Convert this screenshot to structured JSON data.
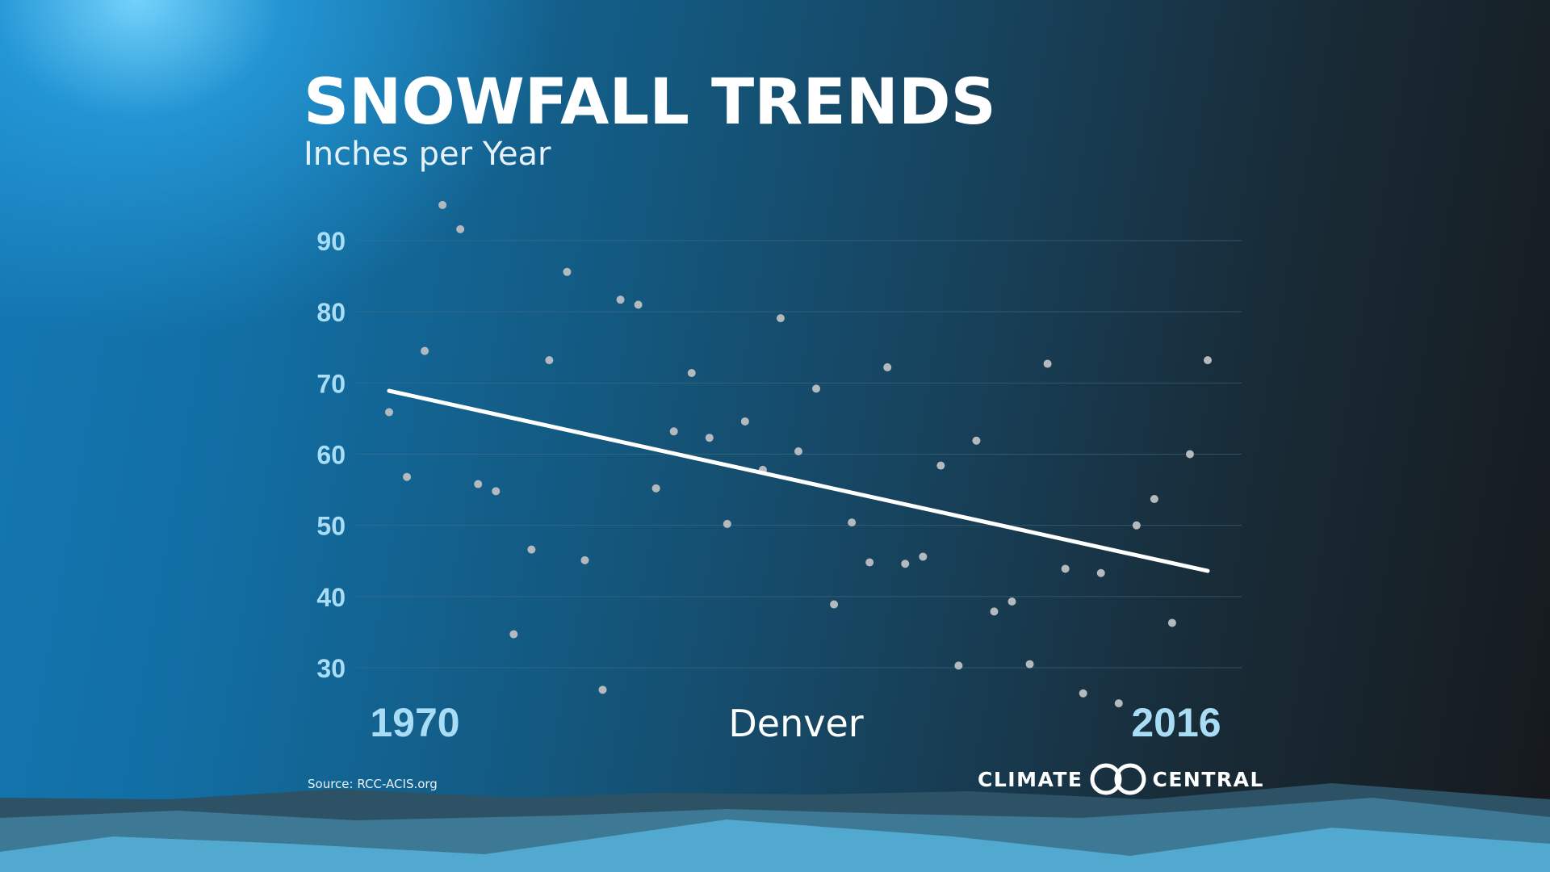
{
  "header": {
    "title": "SNOWFALL TRENDS",
    "subtitle": "Inches per Year"
  },
  "footer": {
    "source": "Source: RCC-ACIS.org",
    "logo_left": "CLIMATE",
    "logo_right": "CENTRAL"
  },
  "colors": {
    "title": "#ffffff",
    "tick_labels": "#a9ddf6",
    "points": "#b4b9bd",
    "trend_line": "#ffffff",
    "gridlines": "#4a6f86"
  },
  "chart_data": {
    "type": "scatter",
    "title": "SNOWFALL TRENDS",
    "subtitle": "Inches per Year",
    "location_label": "Denver",
    "x_start_label": "1970",
    "x_end_label": "2016",
    "xlim": [
      1970,
      2016
    ],
    "ylim": [
      30,
      90
    ],
    "y_ticks": [
      90,
      80,
      70,
      60,
      50,
      40,
      30
    ],
    "grid": true,
    "legend": "none",
    "x": [
      1970,
      1971,
      1972,
      1973,
      1974,
      1975,
      1976,
      1977,
      1978,
      1979,
      1980,
      1981,
      1982,
      1983,
      1984,
      1985,
      1986,
      1987,
      1988,
      1989,
      1990,
      1991,
      1992,
      1993,
      1994,
      1995,
      1996,
      1997,
      1998,
      1999,
      2000,
      2001,
      2002,
      2003,
      2004,
      2005,
      2006,
      2007,
      2008,
      2009,
      2010,
      2011,
      2012,
      2013,
      2014,
      2015,
      2016
    ],
    "values": [
      65.9,
      56.8,
      74.5,
      95.0,
      91.6,
      55.8,
      54.8,
      34.7,
      46.6,
      73.2,
      85.6,
      45.1,
      26.9,
      81.7,
      81.0,
      55.2,
      63.2,
      71.4,
      62.3,
      50.2,
      64.6,
      57.8,
      79.1,
      60.4,
      69.2,
      38.9,
      50.4,
      44.8,
      72.2,
      44.6,
      45.6,
      58.4,
      30.3,
      61.9,
      37.9,
      39.3,
      30.5,
      72.7,
      43.9,
      26.4,
      43.3,
      25.0,
      50.0,
      53.7,
      36.3,
      60.0,
      73.2
    ],
    "trend": {
      "name": "",
      "x": [
        1970,
        2016
      ],
      "y": [
        68.9,
        43.6
      ]
    }
  }
}
